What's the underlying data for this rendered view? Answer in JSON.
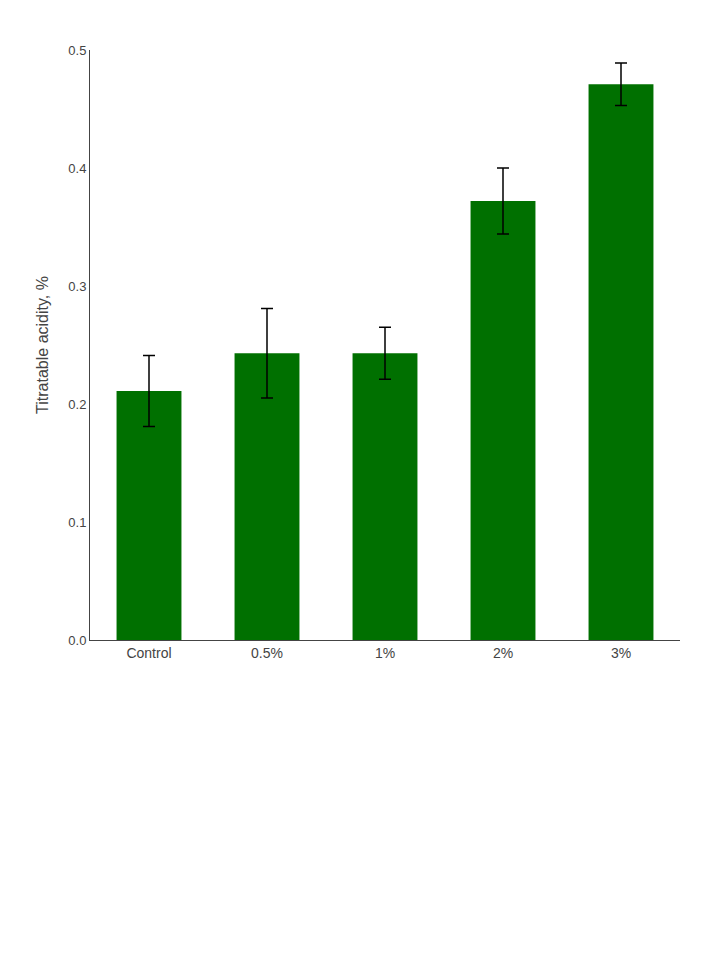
{
  "chart_data": {
    "type": "bar",
    "categories": [
      "Control",
      "0.5%",
      "1%",
      "2%",
      "3%"
    ],
    "values": [
      0.211,
      0.243,
      0.243,
      0.372,
      0.471
    ],
    "errors": [
      0.03,
      0.038,
      0.022,
      0.028,
      0.018
    ],
    "color": "#007000",
    "ylabel": "Titratable acidity, %",
    "ylim": [
      0,
      0.5
    ],
    "yticks": [
      {
        "value": 0,
        "label": "0.0"
      },
      0.1,
      0.2,
      0.3,
      0.4,
      0.5
    ],
    "grid": false
  }
}
